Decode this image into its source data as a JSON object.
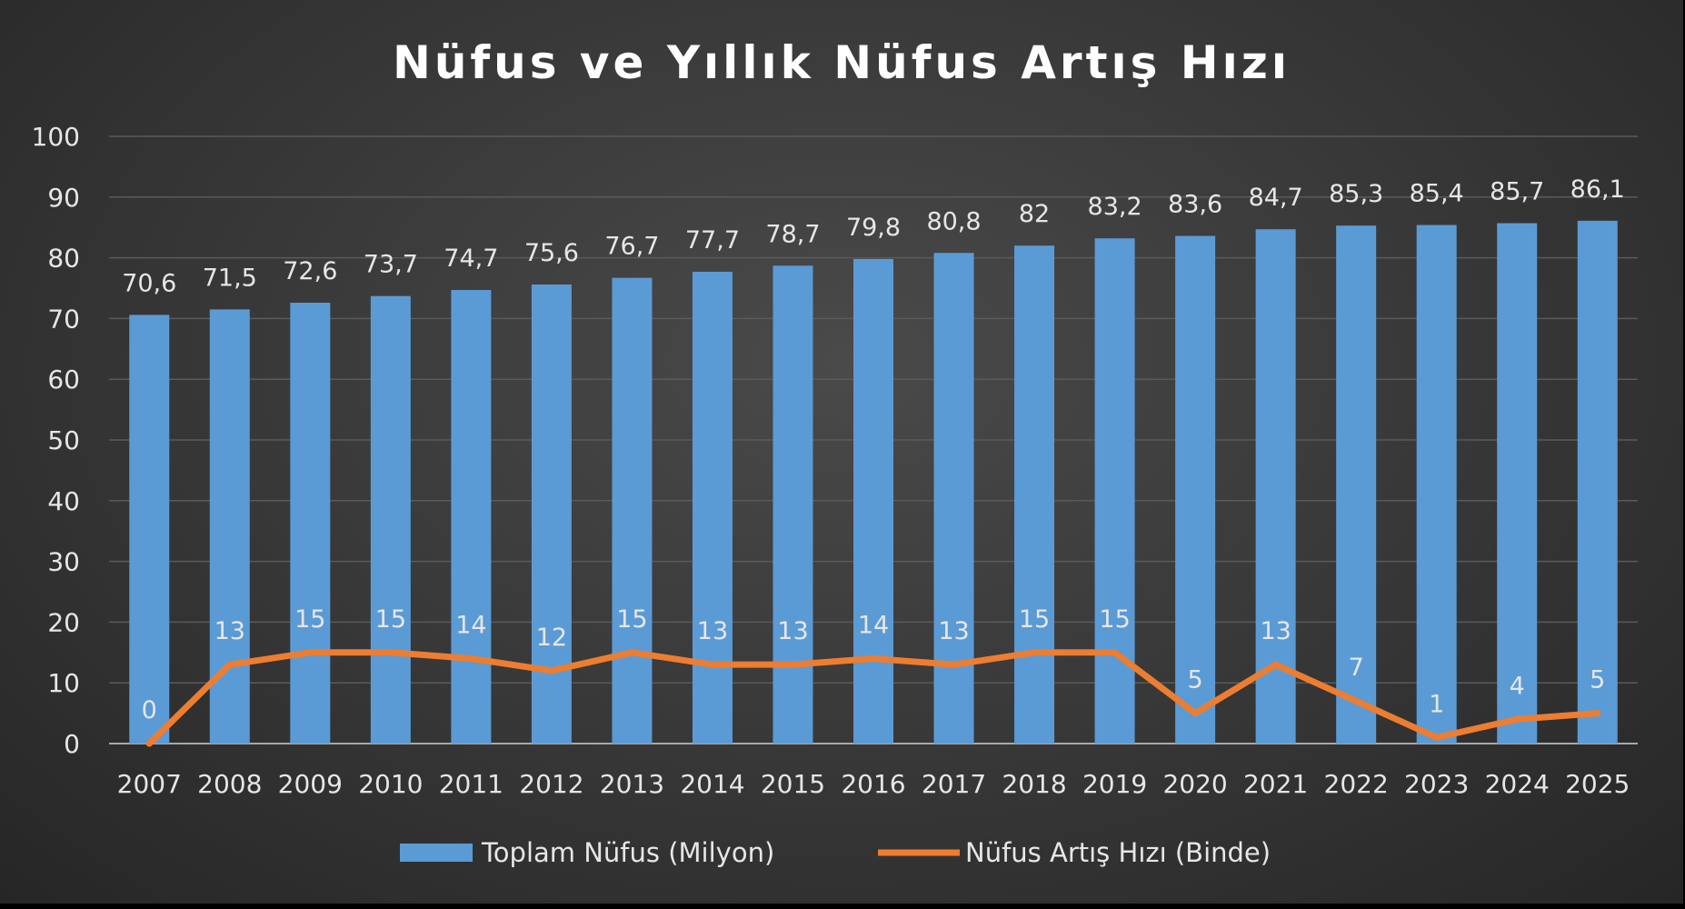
{
  "chart_data": {
    "type": "bar",
    "title": "Nüfus ve Yıllık Nüfus Artış Hızı",
    "xlabel": "",
    "ylabel": "",
    "ylim": [
      0,
      100
    ],
    "yticks": [
      0,
      10,
      20,
      30,
      40,
      50,
      60,
      70,
      80,
      90,
      100
    ],
    "grid": true,
    "legend_position": "bottom",
    "categories": [
      "2007",
      "2008",
      "2009",
      "2010",
      "2011",
      "2012",
      "2013",
      "2014",
      "2015",
      "2016",
      "2017",
      "2018",
      "2019",
      "2020",
      "2021",
      "2022",
      "2023",
      "2024",
      "2025"
    ],
    "series": [
      {
        "name": "Toplam Nüfus (Milyon)",
        "type": "bar",
        "color": "#5b9bd5",
        "values": [
          70.6,
          71.5,
          72.6,
          73.7,
          74.7,
          75.6,
          76.7,
          77.7,
          78.7,
          79.8,
          80.8,
          82,
          83.2,
          83.6,
          84.7,
          85.3,
          85.4,
          85.7,
          86.1
        ],
        "labels": [
          "70,6",
          "71,5",
          "72,6",
          "73,7",
          "74,7",
          "75,6",
          "76,7",
          "77,7",
          "78,7",
          "79,8",
          "80,8",
          "82",
          "83,2",
          "83,6",
          "84,7",
          "85,3",
          "85,4",
          "85,7",
          "86,1"
        ]
      },
      {
        "name": "Nüfus Artış Hızı (Binde)",
        "type": "line",
        "color": "#ed7d31",
        "values": [
          0,
          13,
          15,
          15,
          14,
          12,
          15,
          13,
          13,
          14,
          13,
          15,
          15,
          5,
          13,
          7,
          1,
          4,
          5
        ],
        "labels": [
          "0",
          "13",
          "15",
          "15",
          "14",
          "12",
          "15",
          "13",
          "13",
          "14",
          "13",
          "15",
          "15",
          "5",
          "13",
          "7",
          "1",
          "4",
          "5"
        ]
      }
    ]
  }
}
